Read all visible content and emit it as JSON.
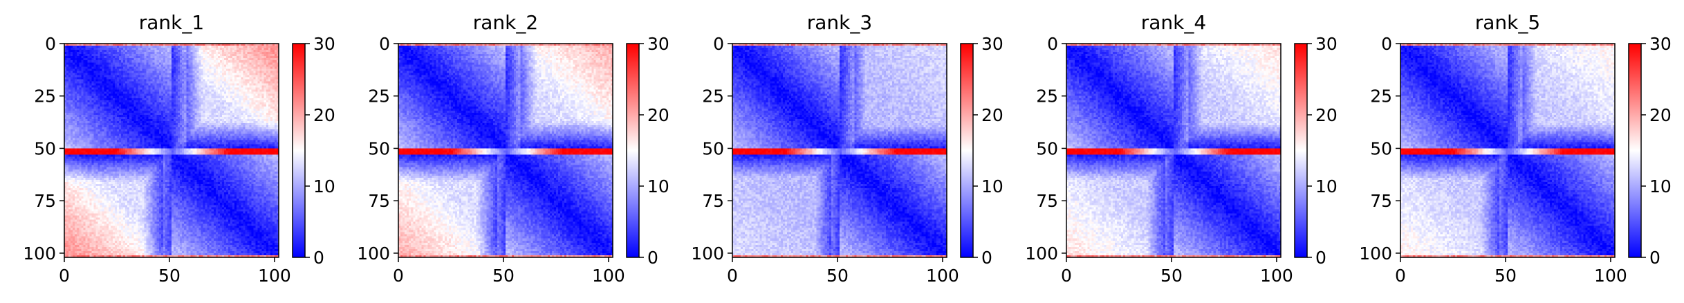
{
  "figure": {
    "panel_count": 5
  },
  "chart_data": [
    {
      "type": "heatmap",
      "title": "rank_1",
      "x_ticks": [
        "0",
        "50",
        "100"
      ],
      "y_ticks": [
        "0",
        "25",
        "50",
        "75",
        "100"
      ],
      "xlim": [
        0,
        102
      ],
      "ylim": [
        102,
        0
      ],
      "n": 102,
      "colorbar": {
        "ticks": [
          "0",
          "10",
          "20",
          "30"
        ],
        "range": [
          0,
          30
        ],
        "colors": [
          "#0000ff",
          "#ffffff",
          "#ff0000"
        ]
      },
      "pattern": {
        "diagonal_min_index": 51,
        "interface_rows": [
          50,
          51,
          52
        ],
        "interface_value": 30,
        "mid_block_value": 13,
        "far_corner_value": 22,
        "background_value": 13
      }
    },
    {
      "type": "heatmap",
      "title": "rank_2",
      "x_ticks": [
        "0",
        "50",
        "100"
      ],
      "y_ticks": [
        "0",
        "25",
        "50",
        "75",
        "100"
      ],
      "xlim": [
        0,
        102
      ],
      "ylim": [
        102,
        0
      ],
      "n": 102,
      "colorbar": {
        "ticks": [
          "0",
          "10",
          "20",
          "30"
        ],
        "range": [
          0,
          30
        ],
        "colors": [
          "#0000ff",
          "#ffffff",
          "#ff0000"
        ]
      },
      "pattern": {
        "diagonal_min_index": 51,
        "interface_rows": [
          50,
          51,
          52
        ],
        "interface_value": 30,
        "mid_block_value": 13,
        "far_corner_value": 20,
        "background_value": 13
      }
    },
    {
      "type": "heatmap",
      "title": "rank_3",
      "x_ticks": [
        "0",
        "50",
        "100"
      ],
      "y_ticks": [
        "0",
        "25",
        "50",
        "75",
        "100"
      ],
      "xlim": [
        0,
        102
      ],
      "ylim": [
        102,
        0
      ],
      "n": 102,
      "colorbar": {
        "ticks": [
          "0",
          "10",
          "20",
          "30"
        ],
        "range": [
          0,
          30
        ],
        "colors": [
          "#0000ff",
          "#ffffff",
          "#ff0000"
        ]
      },
      "pattern": {
        "diagonal_min_index": 51,
        "interface_rows": [
          50,
          51,
          52
        ],
        "interface_value": 30,
        "mid_block_value": 11,
        "far_corner_value": 13,
        "background_value": 11
      }
    },
    {
      "type": "heatmap",
      "title": "rank_4",
      "x_ticks": [
        "0",
        "50",
        "100"
      ],
      "y_ticks": [
        "0",
        "25",
        "50",
        "75",
        "100"
      ],
      "xlim": [
        0,
        102
      ],
      "ylim": [
        102,
        0
      ],
      "n": 102,
      "colorbar": {
        "ticks": [
          "0",
          "10",
          "20",
          "30"
        ],
        "range": [
          0,
          30
        ],
        "colors": [
          "#0000ff",
          "#ffffff",
          "#ff0000"
        ]
      },
      "pattern": {
        "diagonal_min_index": 51,
        "interface_rows": [
          50,
          51,
          52
        ],
        "interface_value": 30,
        "mid_block_value": 12,
        "far_corner_value": 17,
        "background_value": 12
      }
    },
    {
      "type": "heatmap",
      "title": "rank_5",
      "x_ticks": [
        "0",
        "50",
        "100"
      ],
      "y_ticks": [
        "0",
        "25",
        "50",
        "75",
        "100"
      ],
      "xlim": [
        0,
        102
      ],
      "ylim": [
        102,
        0
      ],
      "n": 102,
      "colorbar": {
        "ticks": [
          "0",
          "10",
          "20",
          "30"
        ],
        "range": [
          0,
          30
        ],
        "colors": [
          "#0000ff",
          "#ffffff",
          "#ff0000"
        ]
      },
      "pattern": {
        "diagonal_min_index": 51,
        "interface_rows": [
          50,
          51,
          52
        ],
        "interface_value": 30,
        "mid_block_value": 12,
        "far_corner_value": 16,
        "background_value": 12
      }
    }
  ]
}
